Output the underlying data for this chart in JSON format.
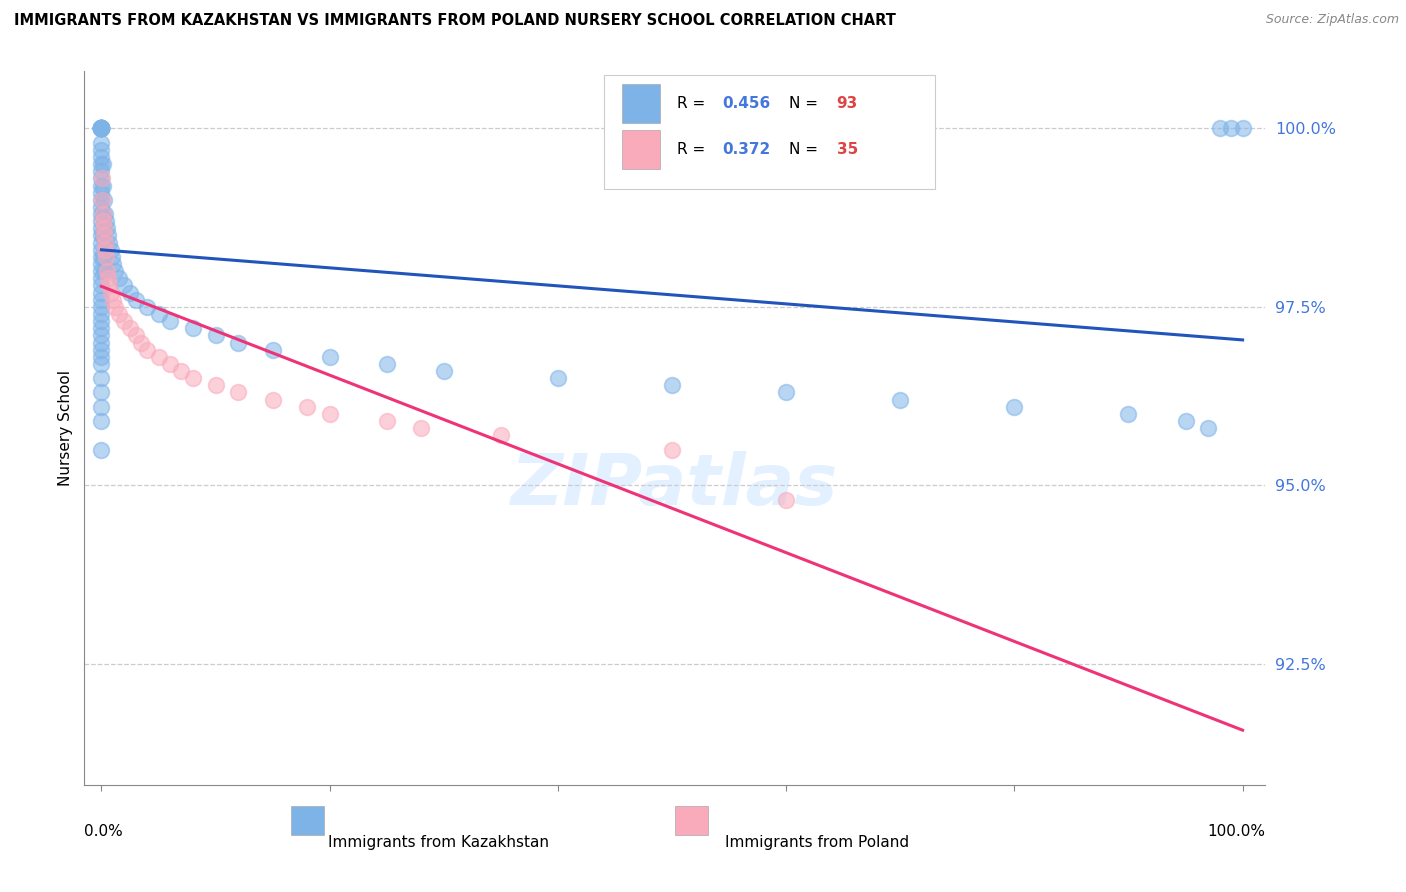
{
  "title": "IMMIGRANTS FROM KAZAKHSTAN VS IMMIGRANTS FROM POLAND NURSERY SCHOOL CORRELATION CHART",
  "source": "Source: ZipAtlas.com",
  "ylabel": "Nursery School",
  "ytick_values": [
    92.5,
    95.0,
    97.5,
    100.0
  ],
  "kaz_color": "#7EB3E8",
  "pol_color": "#F9AABB",
  "kaz_line_color": "#2255BB",
  "pol_line_color": "#EE3377",
  "kaz_R": "0.456",
  "kaz_N": "93",
  "pol_R": "0.372",
  "pol_N": "35",
  "kaz_x": [
    0.0,
    0.0,
    0.0,
    0.0,
    0.0,
    0.0,
    0.0,
    0.0,
    0.0,
    0.0,
    0.0,
    0.0,
    0.0,
    0.0,
    0.0,
    0.0,
    0.0,
    0.0,
    0.0,
    0.0,
    0.0,
    0.0,
    0.0,
    0.0,
    0.0,
    0.0,
    0.0,
    0.0,
    0.0,
    0.0,
    0.0,
    0.0,
    0.0,
    0.0,
    0.0,
    0.0,
    0.0,
    0.0,
    0.0,
    0.0,
    0.0,
    0.0,
    0.0,
    0.0,
    0.0,
    0.0,
    0.0,
    0.0,
    0.0,
    0.0,
    0.1,
    0.1,
    0.1,
    0.1,
    0.1,
    0.2,
    0.2,
    0.2,
    0.3,
    0.3,
    0.4,
    0.5,
    0.6,
    0.7,
    0.8,
    0.9,
    1.0,
    1.2,
    1.5,
    2.0,
    2.5,
    3.0,
    4.0,
    5.0,
    6.0,
    8.0,
    10.0,
    12.0,
    15.0,
    20.0,
    25.0,
    30.0,
    40.0,
    50.0,
    60.0,
    70.0,
    80.0,
    90.0,
    95.0,
    97.0,
    98.0,
    99.0,
    100.0
  ],
  "kaz_y": [
    100.0,
    100.0,
    100.0,
    100.0,
    100.0,
    100.0,
    100.0,
    100.0,
    100.0,
    100.0,
    100.0,
    100.0,
    100.0,
    99.8,
    99.7,
    99.6,
    99.5,
    99.4,
    99.3,
    99.2,
    99.1,
    99.0,
    98.9,
    98.8,
    98.7,
    98.6,
    98.5,
    98.4,
    98.3,
    98.2,
    98.1,
    98.0,
    97.9,
    97.8,
    97.7,
    97.6,
    97.5,
    97.4,
    97.3,
    97.2,
    97.1,
    97.0,
    96.9,
    96.8,
    96.7,
    96.5,
    96.3,
    96.1,
    95.9,
    95.5,
    99.5,
    99.2,
    98.8,
    98.5,
    98.2,
    99.0,
    98.6,
    98.0,
    98.8,
    98.4,
    98.7,
    98.6,
    98.5,
    98.4,
    98.3,
    98.2,
    98.1,
    98.0,
    97.9,
    97.8,
    97.7,
    97.6,
    97.5,
    97.4,
    97.3,
    97.2,
    97.1,
    97.0,
    96.9,
    96.8,
    96.7,
    96.6,
    96.5,
    96.4,
    96.3,
    96.2,
    96.1,
    96.0,
    95.9,
    95.8,
    100.0,
    100.0,
    100.0
  ],
  "pol_x": [
    0.05,
    0.08,
    0.1,
    0.15,
    0.2,
    0.25,
    0.3,
    0.35,
    0.4,
    0.5,
    0.6,
    0.7,
    0.8,
    1.0,
    1.2,
    1.5,
    2.0,
    2.5,
    3.0,
    3.5,
    4.0,
    5.0,
    6.0,
    7.0,
    8.0,
    10.0,
    12.0,
    15.0,
    18.0,
    20.0,
    25.0,
    28.0,
    35.0,
    50.0,
    60.0
  ],
  "pol_y": [
    99.3,
    99.0,
    98.8,
    98.7,
    98.6,
    98.5,
    98.4,
    98.3,
    98.2,
    98.0,
    97.9,
    97.8,
    97.7,
    97.6,
    97.5,
    97.4,
    97.3,
    97.2,
    97.1,
    97.0,
    96.9,
    96.8,
    96.7,
    96.6,
    96.5,
    96.4,
    96.3,
    96.2,
    96.1,
    96.0,
    95.9,
    95.8,
    95.7,
    95.5,
    94.8
  ]
}
